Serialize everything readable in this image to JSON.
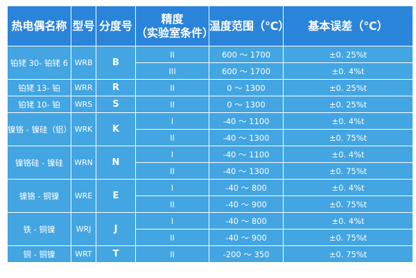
{
  "colors": {
    "header_bg": "#2a84da",
    "body_bg": "#43a5e2",
    "text": "#ffffff",
    "border": "#ffffff"
  },
  "table": {
    "headers": [
      "热电偶名称",
      "型号",
      "分度号",
      "精度",
      "（实验室条件）",
      "温度范围（℃）",
      "基本误差（℃）"
    ],
    "groups": [
      {
        "name": "铂铑 30- 铂铑 6",
        "model": "WRB",
        "grade": "B",
        "rows": [
          {
            "precision": "II",
            "range": "600 ～ 1700",
            "error": "±0. 25%t"
          },
          {
            "precision": "III",
            "range": "600 ～ 1700",
            "error": "±0. 4%t"
          }
        ]
      },
      {
        "name": "铂铑 13- 铂",
        "model": "WRR",
        "grade": "R",
        "rows": [
          {
            "precision": "II",
            "range": "0 ～ 1300",
            "error": "±0. 25%t"
          }
        ]
      },
      {
        "name": "铂铑 10- 铂",
        "model": "WRS",
        "grade": "S",
        "rows": [
          {
            "precision": "II",
            "range": "0 ～ 1300",
            "error": "±0. 25%t"
          }
        ]
      },
      {
        "name": "镍铬 - 镍硅（铝）",
        "model": "WRK",
        "grade": "K",
        "rows": [
          {
            "precision": "I",
            "range": "-40 ～ 1100",
            "error": "±0. 4%t"
          },
          {
            "precision": "II",
            "range": "-40 ～ 1300",
            "error": "±0. 75%t"
          }
        ]
      },
      {
        "name": "镍铬硅 - 镍硅",
        "model": "WRN",
        "grade": "N",
        "rows": [
          {
            "precision": "I",
            "range": "-40 ～ 1100",
            "error": "±0. 4%t"
          },
          {
            "precision": "II",
            "range": "-40 ～ 1300",
            "error": "±0. 75%t"
          }
        ]
      },
      {
        "name": "镍铬 - 铜镍",
        "model": "WRE",
        "grade": "E",
        "rows": [
          {
            "precision": "I",
            "range": "-40 ～ 800",
            "error": "±0. 4%t"
          },
          {
            "precision": "II",
            "range": "-40 ～ 900",
            "error": "±0. 75%t"
          }
        ]
      },
      {
        "name": "铁 - 铜镍",
        "model": "WRJ",
        "grade": "J",
        "rows": [
          {
            "precision": "I",
            "range": "-40 ～ 800",
            "error": "±0. 4%t"
          },
          {
            "precision": "II",
            "range": "-40 ～ 900",
            "error": "±0. 75%t"
          }
        ]
      },
      {
        "name": "铜 - 铜镍",
        "model": "WRT",
        "grade": "T",
        "rows": [
          {
            "precision": "II",
            "range": "-200 ～ 350",
            "error": "±0. 75%t"
          }
        ]
      }
    ]
  }
}
